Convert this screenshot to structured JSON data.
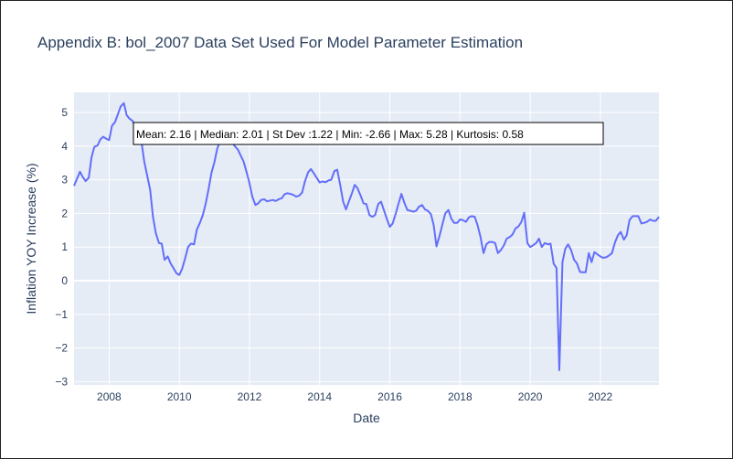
{
  "chart_data": {
    "type": "line",
    "title": "Appendix B: bol_2007 Data Set Used For Model Parameter Estimation",
    "xlabel": "Date",
    "ylabel": "Inflation YOY Increase (%)",
    "xlim": [
      2007.0,
      2023.67
    ],
    "ylim": [
      -3.1,
      5.6
    ],
    "x_ticks": [
      2008,
      2010,
      2012,
      2014,
      2016,
      2018,
      2020,
      2022
    ],
    "x_tick_labels": [
      "2008",
      "2010",
      "2012",
      "2014",
      "2016",
      "2018",
      "2020",
      "2022"
    ],
    "y_ticks": [
      -3,
      -2,
      -1,
      0,
      1,
      2,
      3,
      4,
      5
    ],
    "y_tick_labels": [
      "−3",
      "−2",
      "−1",
      "0",
      "1",
      "2",
      "3",
      "4",
      "5"
    ],
    "grid": true,
    "annotation": "Mean: 2.16 | Median: 2.01 | St Dev :1.22 | Min: -2.66 | Max: 5.28 | Kurtosis: 0.58",
    "series": [
      {
        "color": "#636efa",
        "x": [
          2007.0,
          2007.08,
          2007.17,
          2007.25,
          2007.33,
          2007.42,
          2007.5,
          2007.58,
          2007.67,
          2007.75,
          2007.83,
          2007.92,
          2008.0,
          2008.08,
          2008.17,
          2008.25,
          2008.33,
          2008.42,
          2008.5,
          2008.58,
          2008.67,
          2008.75,
          2008.83,
          2008.92,
          2009.0,
          2009.08,
          2009.17,
          2009.25,
          2009.33,
          2009.42,
          2009.5,
          2009.58,
          2009.67,
          2009.75,
          2009.83,
          2009.92,
          2010.0,
          2010.08,
          2010.17,
          2010.25,
          2010.33,
          2010.42,
          2010.5,
          2010.58,
          2010.67,
          2010.75,
          2010.83,
          2010.92,
          2011.0,
          2011.08,
          2011.17,
          2011.25,
          2011.33,
          2011.42,
          2011.5,
          2011.58,
          2011.67,
          2011.75,
          2011.83,
          2011.92,
          2012.0,
          2012.08,
          2012.17,
          2012.25,
          2012.33,
          2012.42,
          2012.5,
          2012.58,
          2012.67,
          2012.75,
          2012.83,
          2012.92,
          2013.0,
          2013.08,
          2013.17,
          2013.25,
          2013.33,
          2013.42,
          2013.5,
          2013.58,
          2013.67,
          2013.75,
          2013.83,
          2013.92,
          2014.0,
          2014.08,
          2014.17,
          2014.25,
          2014.33,
          2014.42,
          2014.5,
          2014.58,
          2014.67,
          2014.75,
          2014.83,
          2014.92,
          2015.0,
          2015.08,
          2015.17,
          2015.25,
          2015.33,
          2015.42,
          2015.5,
          2015.58,
          2015.67,
          2015.75,
          2015.83,
          2015.92,
          2016.0,
          2016.08,
          2016.17,
          2016.25,
          2016.33,
          2016.42,
          2016.5,
          2016.58,
          2016.67,
          2016.75,
          2016.83,
          2016.92,
          2017.0,
          2017.08,
          2017.17,
          2017.25,
          2017.33,
          2017.42,
          2017.5,
          2017.58,
          2017.67,
          2017.75,
          2017.83,
          2017.92,
          2018.0,
          2018.08,
          2018.17,
          2018.25,
          2018.33,
          2018.42,
          2018.5,
          2018.58,
          2018.67,
          2018.75,
          2018.83,
          2018.92,
          2019.0,
          2019.08,
          2019.17,
          2019.25,
          2019.33,
          2019.42,
          2019.5,
          2019.58,
          2019.67,
          2019.75,
          2019.83,
          2019.92,
          2020.0,
          2020.08,
          2020.17,
          2020.25,
          2020.33,
          2020.42,
          2020.5,
          2020.58,
          2020.67,
          2020.75,
          2020.83,
          2020.92,
          2021.0,
          2021.08,
          2021.17,
          2021.25,
          2021.33,
          2021.42,
          2021.5,
          2021.58,
          2021.67,
          2021.75,
          2021.83,
          2021.92,
          2022.0,
          2022.08,
          2022.17,
          2022.25,
          2022.33,
          2022.42,
          2022.5,
          2022.58,
          2022.67,
          2022.75,
          2022.83,
          2022.92,
          2023.0,
          2023.08,
          2023.17,
          2023.25,
          2023.33,
          2023.42,
          2023.5,
          2023.58,
          2023.67
        ],
        "y": [
          2.82,
          3.02,
          3.24,
          3.08,
          2.96,
          3.06,
          3.68,
          3.98,
          4.02,
          4.2,
          4.28,
          4.22,
          4.18,
          4.6,
          4.72,
          4.95,
          5.18,
          5.28,
          4.92,
          4.82,
          4.75,
          4.55,
          4.4,
          4.15,
          3.55,
          3.15,
          2.7,
          1.9,
          1.42,
          1.12,
          1.1,
          0.62,
          0.72,
          0.52,
          0.38,
          0.22,
          0.17,
          0.35,
          0.68,
          1.0,
          1.1,
          1.08,
          1.52,
          1.7,
          1.95,
          2.28,
          2.7,
          3.22,
          3.52,
          3.92,
          4.18,
          4.15,
          4.22,
          4.18,
          4.12,
          4.0,
          3.9,
          3.72,
          3.55,
          3.22,
          2.9,
          2.5,
          2.25,
          2.3,
          2.4,
          2.42,
          2.36,
          2.38,
          2.4,
          2.37,
          2.42,
          2.45,
          2.57,
          2.6,
          2.58,
          2.55,
          2.5,
          2.53,
          2.62,
          2.95,
          3.22,
          3.32,
          3.2,
          3.05,
          2.92,
          2.95,
          2.93,
          2.98,
          3.0,
          3.26,
          3.3,
          2.88,
          2.35,
          2.12,
          2.35,
          2.6,
          2.85,
          2.75,
          2.52,
          2.3,
          2.28,
          1.95,
          1.9,
          1.95,
          2.28,
          2.35,
          2.1,
          1.82,
          1.6,
          1.7,
          2.0,
          2.3,
          2.58,
          2.3,
          2.1,
          2.08,
          2.05,
          2.08,
          2.2,
          2.25,
          2.12,
          2.08,
          1.98,
          1.65,
          1.02,
          1.35,
          1.68,
          2.0,
          2.1,
          1.85,
          1.72,
          1.72,
          1.82,
          1.8,
          1.75,
          1.88,
          1.92,
          1.9,
          1.65,
          1.32,
          0.82,
          1.08,
          1.15,
          1.15,
          1.12,
          0.82,
          0.92,
          1.05,
          1.25,
          1.3,
          1.38,
          1.55,
          1.62,
          1.75,
          2.02,
          1.12,
          1.0,
          1.05,
          1.12,
          1.25,
          1.0,
          1.12,
          1.08,
          1.1,
          0.5,
          0.38,
          -2.66,
          0.55,
          0.95,
          1.08,
          0.9,
          0.62,
          0.52,
          0.26,
          0.25,
          0.25,
          0.82,
          0.55,
          0.85,
          0.78,
          0.72,
          0.68,
          0.7,
          0.75,
          0.82,
          1.15,
          1.35,
          1.45,
          1.22,
          1.35,
          1.8,
          1.92,
          1.92,
          1.92,
          1.7,
          1.72,
          1.75,
          1.82,
          1.78,
          1.78,
          1.9
        ]
      }
    ]
  }
}
